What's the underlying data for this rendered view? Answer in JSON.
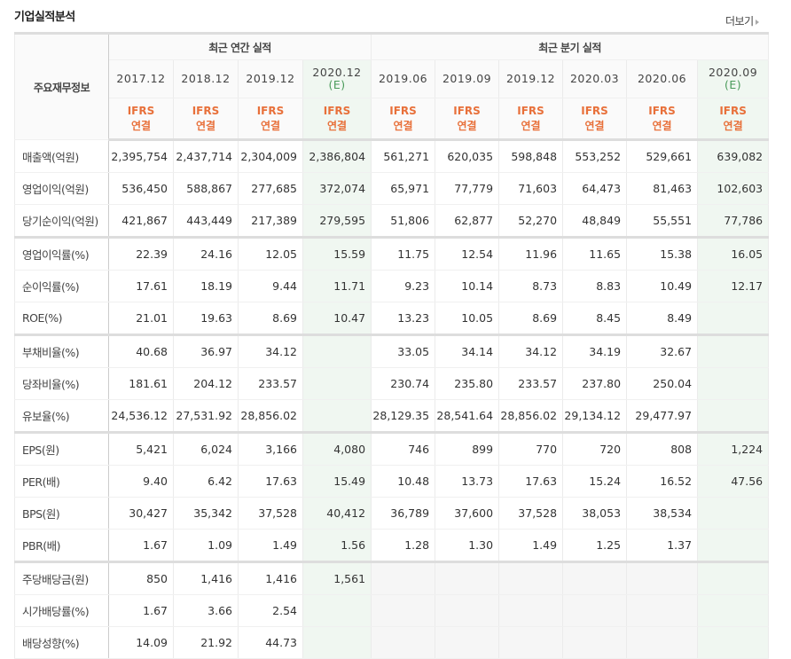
{
  "title": "기업실적분석",
  "more_label": "더보기",
  "header": {
    "row_label": "주요재무정보",
    "annual_group": "최근 연간 실적",
    "quarter_group": "최근 분기 실적",
    "periods": [
      {
        "date": "2017.12",
        "est": ""
      },
      {
        "date": "2018.12",
        "est": ""
      },
      {
        "date": "2019.12",
        "est": ""
      },
      {
        "date": "2020.12",
        "est": "(E)"
      },
      {
        "date": "2019.06",
        "est": ""
      },
      {
        "date": "2019.09",
        "est": ""
      },
      {
        "date": "2019.12",
        "est": ""
      },
      {
        "date": "2020.03",
        "est": ""
      },
      {
        "date": "2020.06",
        "est": ""
      },
      {
        "date": "2020.09",
        "est": "(E)"
      }
    ],
    "ifrs_top": "IFRS",
    "ifrs_bottom": "연결"
  },
  "colors": {
    "ifrs": "#e8703a",
    "estimate_bg": "#f0f7f1",
    "estimate_text": "#4a9b5a",
    "na_bg": "#f6f6f6"
  },
  "rows": [
    {
      "label": "매출액(억원)",
      "values": [
        "2,395,754",
        "2,437,714",
        "2,304,009",
        "2,386,804",
        "561,271",
        "620,035",
        "598,848",
        "553,252",
        "529,661",
        "639,082"
      ]
    },
    {
      "label": "영업이익(억원)",
      "values": [
        "536,450",
        "588,867",
        "277,685",
        "372,074",
        "65,971",
        "77,779",
        "71,603",
        "64,473",
        "81,463",
        "102,603"
      ]
    },
    {
      "label": "당기순이익(억원)",
      "values": [
        "421,867",
        "443,449",
        "217,389",
        "279,595",
        "51,806",
        "62,877",
        "52,270",
        "48,849",
        "55,551",
        "77,786"
      ],
      "group_end": true
    },
    {
      "label": "영업이익률(%)",
      "values": [
        "22.39",
        "24.16",
        "12.05",
        "15.59",
        "11.75",
        "12.54",
        "11.96",
        "11.65",
        "15.38",
        "16.05"
      ]
    },
    {
      "label": "순이익률(%)",
      "values": [
        "17.61",
        "18.19",
        "9.44",
        "11.71",
        "9.23",
        "10.14",
        "8.73",
        "8.83",
        "10.49",
        "12.17"
      ]
    },
    {
      "label": "ROE(%)",
      "values": [
        "21.01",
        "19.63",
        "8.69",
        "10.47",
        "13.23",
        "10.05",
        "8.69",
        "8.45",
        "8.49",
        ""
      ],
      "group_end": true
    },
    {
      "label": "부채비율(%)",
      "values": [
        "40.68",
        "36.97",
        "34.12",
        "",
        "33.05",
        "34.14",
        "34.12",
        "34.19",
        "32.67",
        ""
      ]
    },
    {
      "label": "당좌비율(%)",
      "values": [
        "181.61",
        "204.12",
        "233.57",
        "",
        "230.74",
        "235.80",
        "233.57",
        "237.80",
        "250.04",
        ""
      ]
    },
    {
      "label": "유보율(%)",
      "values": [
        "24,536.12",
        "27,531.92",
        "28,856.02",
        "",
        "28,129.35",
        "28,541.64",
        "28,856.02",
        "29,134.12",
        "29,477.97",
        ""
      ],
      "group_end": true
    },
    {
      "label": "EPS(원)",
      "values": [
        "5,421",
        "6,024",
        "3,166",
        "4,080",
        "746",
        "899",
        "770",
        "720",
        "808",
        "1,224"
      ]
    },
    {
      "label": "PER(배)",
      "values": [
        "9.40",
        "6.42",
        "17.63",
        "15.49",
        "10.48",
        "13.73",
        "17.63",
        "15.24",
        "16.52",
        "47.56"
      ]
    },
    {
      "label": "BPS(원)",
      "values": [
        "30,427",
        "35,342",
        "37,528",
        "40,412",
        "36,789",
        "37,600",
        "37,528",
        "38,053",
        "38,534",
        ""
      ]
    },
    {
      "label": "PBR(배)",
      "values": [
        "1.67",
        "1.09",
        "1.49",
        "1.56",
        "1.28",
        "1.30",
        "1.49",
        "1.25",
        "1.37",
        ""
      ],
      "group_end": true
    },
    {
      "label": "주당배당금(원)",
      "values": [
        "850",
        "1,416",
        "1,416",
        "1,561",
        "",
        "",
        "",
        "",
        "",
        ""
      ],
      "quarter_na": true
    },
    {
      "label": "시가배당률(%)",
      "values": [
        "1.67",
        "3.66",
        "2.54",
        "",
        "",
        "",
        "",
        "",
        "",
        ""
      ],
      "quarter_na": true
    },
    {
      "label": "배당성향(%)",
      "values": [
        "14.09",
        "21.92",
        "44.73",
        "",
        "",
        "",
        "",
        "",
        "",
        ""
      ],
      "quarter_na": true
    }
  ]
}
